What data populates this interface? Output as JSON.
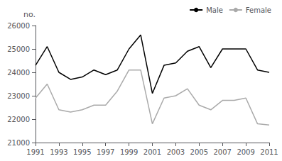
{
  "chart_data": {
    "type": "line",
    "ylabel": "no.",
    "x": [
      1991,
      1992,
      1993,
      1994,
      1995,
      1996,
      1997,
      1998,
      1999,
      2000,
      2001,
      2002,
      2003,
      2004,
      2005,
      2006,
      2007,
      2008,
      2009,
      2010,
      2011
    ],
    "series": [
      {
        "name": "Male",
        "color": "#000000",
        "values": [
          24300,
          25100,
          24000,
          23700,
          23800,
          24100,
          23900,
          24100,
          25000,
          25600,
          23100,
          24300,
          24400,
          24900,
          25100,
          24200,
          25000,
          25000,
          25000,
          24100,
          24000
        ]
      },
      {
        "name": "Female",
        "color": "#aaaaaa",
        "values": [
          22900,
          23500,
          22400,
          22300,
          22400,
          22600,
          22600,
          23200,
          24100,
          24100,
          21800,
          22900,
          23000,
          23300,
          22600,
          22400,
          22800,
          22800,
          22900,
          21800,
          21750
        ]
      }
    ],
    "xlim": [
      1991,
      2011
    ],
    "xticks": [
      1991,
      1993,
      1995,
      1997,
      1999,
      2001,
      2003,
      2005,
      2007,
      2009,
      2011
    ],
    "ylim": [
      21000,
      26000
    ],
    "yticks": [
      21000,
      22000,
      23000,
      24000,
      25000,
      26000
    ],
    "grid": false,
    "legend": "upper right"
  }
}
